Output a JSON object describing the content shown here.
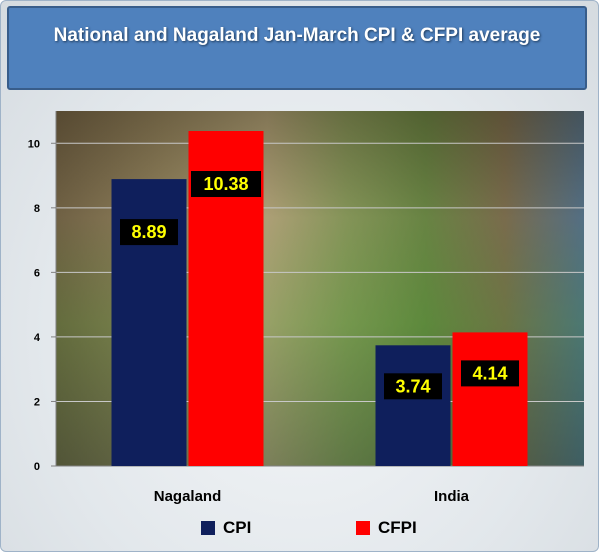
{
  "header": {
    "title": "National and Nagaland Jan-March CPI & CFPI average"
  },
  "chart_data": {
    "type": "bar",
    "title": "National and Nagaland Jan-March CPI & CFPI average",
    "categories": [
      "Nagaland",
      "India"
    ],
    "series": [
      {
        "name": "CPI",
        "values": [
          8.89,
          3.74
        ],
        "color": "#0f1f5c"
      },
      {
        "name": "CFPI",
        "values": [
          10.38,
          4.14
        ],
        "color": "#ff0000"
      }
    ],
    "data_labels": [
      [
        "8.89",
        "3.74"
      ],
      [
        "10.38",
        "4.14"
      ]
    ],
    "yticks": [
      "0",
      "2",
      "4",
      "6",
      "8",
      "10"
    ],
    "ylim": [
      0,
      11
    ],
    "xlabel": "",
    "ylabel": "",
    "grid": true,
    "legend_position": "bottom",
    "label_box_color": "#000000",
    "label_text_color": "#ffff00"
  }
}
